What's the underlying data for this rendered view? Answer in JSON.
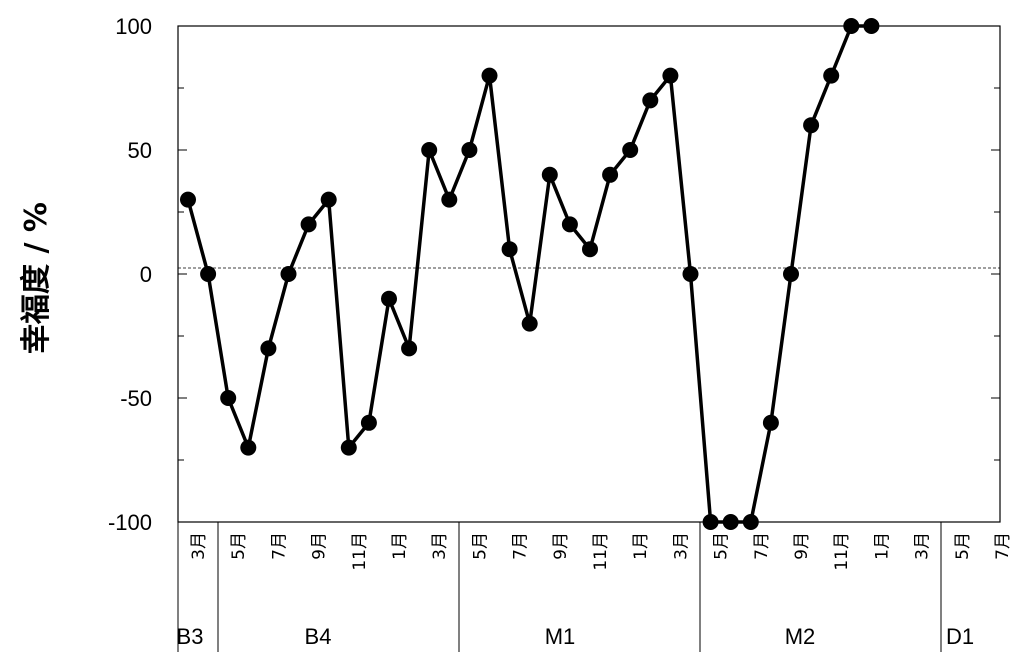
{
  "chart_data": {
    "type": "line",
    "title": "",
    "xlabel": "",
    "ylabel": "幸福度 / %",
    "ylim": [
      -100,
      100
    ],
    "yticks": [
      100,
      50,
      0,
      -50,
      -100
    ],
    "ytick_labels": [
      "100",
      "50",
      "0",
      "-50",
      "-100"
    ],
    "reference_line_y": 0,
    "month_labels": [
      "3月",
      "5月",
      "7月",
      "9月",
      "11月",
      "1月",
      "3月",
      "5月",
      "7月",
      "9月",
      "11月",
      "1月",
      "3月",
      "5月",
      "7月",
      "9月",
      "11月",
      "1月",
      "3月",
      "5月",
      "7月"
    ],
    "stages": [
      "B3",
      "B4",
      "M1",
      "M2",
      "D1"
    ],
    "series": [
      {
        "values": [
          30,
          0,
          -50,
          -70,
          -30,
          0,
          20,
          30,
          -70,
          -60,
          -10,
          -30,
          50,
          30,
          50,
          80,
          10,
          -20,
          40,
          20,
          10,
          40,
          50,
          70,
          80,
          0,
          -100,
          -100,
          -100,
          -60,
          0,
          60,
          80,
          100,
          100
        ]
      }
    ],
    "grid": false
  }
}
